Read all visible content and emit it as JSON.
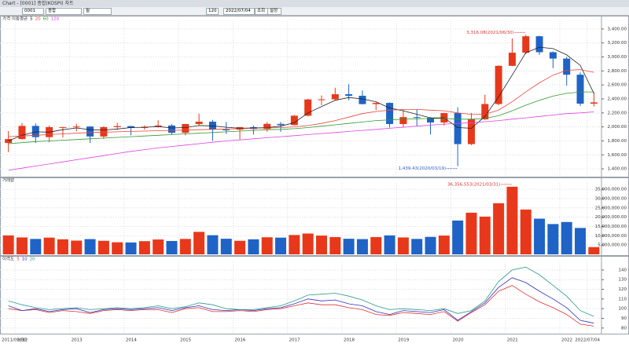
{
  "toolbar": {
    "title": "Chart - [0001] 종합(KOSPI) 차트",
    "code": "0001",
    "name": "종합",
    "period": "월",
    "count": "120",
    "date": "2022/07/04",
    "buttons": [
      "조회",
      "설정"
    ]
  },
  "chart_data": [
    {
      "type": "candlestick",
      "title": "가격 이동평균",
      "categories": [
        "2011/09/30",
        "2012",
        null,
        null,
        null,
        "2013",
        null,
        null,
        null,
        "2014",
        null,
        null,
        null,
        "2015",
        null,
        null,
        null,
        "2016",
        null,
        null,
        null,
        "2017",
        null,
        null,
        null,
        "2018",
        null,
        null,
        null,
        "2019",
        null,
        null,
        null,
        "2020",
        null,
        null,
        null,
        "2021",
        null,
        null,
        null,
        "2022",
        null,
        "2022/07/04"
      ],
      "open": [
        1770,
        1826,
        2014,
        1854,
        1996,
        1997,
        2005,
        1863,
        1997,
        2011,
        1986,
        2002,
        2020,
        1916,
        2041,
        2074,
        1963,
        1961,
        1996,
        1970,
        2043,
        2026,
        2160,
        2392,
        2394,
        2467,
        2445,
        2326,
        2343,
        2041,
        2140,
        2130,
        2063,
        2197,
        1754,
        2108,
        2327,
        2873,
        3061,
        3296,
        3068,
        2977,
        2746,
        2332
      ],
      "high": [
        1940,
        2057,
        2050,
        2020,
        2000,
        2045,
        2010,
        2010,
        2060,
        2015,
        2020,
        2095,
        2040,
        2045,
        2190,
        2100,
        2070,
        2000,
        2020,
        2070,
        2070,
        2170,
        2400,
        2450,
        2560,
        2610,
        2520,
        2350,
        2350,
        2240,
        2250,
        2140,
        2200,
        2280,
        2200,
        2460,
        2880,
        3266,
        3316.08,
        3305,
        3080,
        3000,
        2780,
        2500
      ],
      "low": [
        1640,
        1820,
        1770,
        1780,
        1850,
        1940,
        1770,
        1830,
        1960,
        1880,
        1960,
        1990,
        1890,
        1880,
        2020,
        1800,
        1900,
        1820,
        1890,
        1930,
        1930,
        2020,
        2150,
        2310,
        2380,
        2380,
        2320,
        2240,
        1990,
        1990,
        2010,
        1890,
        2020,
        1439.43,
        1740,
        2100,
        2310,
        2870,
        3040,
        3030,
        2840,
        2590,
        2300,
        2290
      ],
      "close": [
        1826,
        2014,
        1854,
        1996,
        1997,
        2005,
        1863,
        1997,
        2011,
        1986,
        2002,
        2020,
        1916,
        2041,
        2074,
        1963,
        1961,
        1996,
        1970,
        2043,
        2026,
        2160,
        2392,
        2394,
        2467,
        2445,
        2326,
        2343,
        2041,
        2140,
        2130,
        2063,
        2197,
        1754,
        2108,
        2327,
        2873,
        3061,
        3296,
        3068,
        2977,
        2746,
        2332,
        2350
      ],
      "up_color": "#e8381b",
      "down_color": "#1f63c6",
      "series": [
        {
          "name": "5",
          "color": "#222222",
          "values": [
            1800,
            1880,
            1930,
            1925,
            1960,
            1985,
            1960,
            1955,
            1970,
            1990,
            1995,
            2005,
            1985,
            1990,
            2020,
            2015,
            1995,
            1980,
            1985,
            1990,
            2010,
            2060,
            2200,
            2290,
            2380,
            2420,
            2400,
            2360,
            2270,
            2230,
            2180,
            2130,
            2130,
            1990,
            1980,
            2150,
            2430,
            2740,
            3060,
            3140,
            3120,
            3030,
            2880,
            2480
          ]
        },
        {
          "name": "20",
          "color": "#e8453c",
          "values": [
            1860,
            1870,
            1880,
            1890,
            1900,
            1910,
            1920,
            1925,
            1930,
            1935,
            1940,
            1945,
            1950,
            1955,
            1960,
            1965,
            1970,
            1975,
            1980,
            1985,
            1990,
            2000,
            2020,
            2050,
            2090,
            2140,
            2190,
            2220,
            2240,
            2250,
            2250,
            2240,
            2230,
            2200,
            2180,
            2180,
            2240,
            2360,
            2500,
            2630,
            2740,
            2810,
            2820,
            2780
          ]
        },
        {
          "name": "60",
          "color": "#2e9a2e",
          "values": [
            1760,
            1775,
            1790,
            1800,
            1810,
            1820,
            1830,
            1840,
            1850,
            1860,
            1870,
            1880,
            1890,
            1900,
            1910,
            1920,
            1930,
            1940,
            1950,
            1960,
            1965,
            1975,
            1990,
            2010,
            2030,
            2050,
            2070,
            2090,
            2100,
            2110,
            2115,
            2120,
            2120,
            2110,
            2110,
            2120,
            2160,
            2230,
            2310,
            2380,
            2440,
            2480,
            2500,
            2500
          ]
        },
        {
          "name": "120",
          "color": "#e040e0",
          "values": [
            1380,
            1410,
            1440,
            1470,
            1500,
            1530,
            1560,
            1590,
            1620,
            1650,
            1675,
            1700,
            1720,
            1740,
            1760,
            1780,
            1800,
            1815,
            1830,
            1845,
            1860,
            1875,
            1890,
            1905,
            1920,
            1935,
            1950,
            1965,
            1980,
            1995,
            2010,
            2025,
            2040,
            2050,
            2060,
            2075,
            2090,
            2110,
            2130,
            2150,
            2170,
            2190,
            2200,
            2215
          ]
        }
      ],
      "ylim": [
        1300,
        3500
      ],
      "yticks": [
        {
          "value": 1400,
          "label": "1,400.00"
        },
        {
          "value": 1600,
          "label": "1,600.00"
        },
        {
          "value": 1800,
          "label": "1,800.00"
        },
        {
          "value": 2000,
          "label": "2,000.00"
        },
        {
          "value": 2200,
          "label": "2,200.00"
        },
        {
          "value": 2400,
          "label": "2,400.00"
        },
        {
          "value": 2600,
          "label": "2,600.00"
        },
        {
          "value": 2800,
          "label": "2,800.00"
        },
        {
          "value": 3000,
          "label": "3,000.00"
        },
        {
          "value": 3200,
          "label": "3,200.00"
        },
        {
          "value": 3400,
          "label": "3,400.00"
        }
      ],
      "grid": true,
      "annotations": {
        "high": "3,316.08(2021/06/30)",
        "low": "1,439.43(2020/03/19)"
      }
    },
    {
      "type": "bar",
      "title": "거래량",
      "values": [
        10200000,
        9100000,
        8300000,
        9000000,
        8100000,
        7400000,
        8200000,
        7300000,
        6500000,
        6400000,
        7100000,
        8000000,
        7200000,
        8300000,
        12100000,
        10300000,
        8400000,
        7300000,
        8100000,
        9200000,
        9000000,
        10400000,
        11200000,
        10100000,
        9300000,
        8400000,
        8200000,
        9300000,
        10200000,
        9100000,
        8300000,
        9400000,
        10100000,
        18200000,
        22400000,
        20300000,
        27500000,
        36356553,
        24100000,
        19200000,
        16300000,
        17400000,
        14200000,
        3900000
      ],
      "ylim": [
        0,
        38000000
      ],
      "yticks": [
        {
          "value": 5000000,
          "label": "5,000,000.00"
        },
        {
          "value": 10000000,
          "label": "10,000,000.00"
        },
        {
          "value": 15000000,
          "label": "15,000,000.00"
        },
        {
          "value": 20000000,
          "label": "20,000,000.00"
        },
        {
          "value": 25000000,
          "label": "25,000,000.00"
        },
        {
          "value": 30000000,
          "label": "30,000,000.00"
        },
        {
          "value": 35000000,
          "label": "35,000,000.00"
        }
      ],
      "grid": true,
      "annotation": "36,356,553(2021/03/31)"
    },
    {
      "type": "line",
      "title": "이격도",
      "series": [
        {
          "name": "5",
          "color": "#e03030",
          "values": [
            100,
            98,
            99,
            96,
            98,
            97,
            95,
            98,
            99,
            98,
            99,
            99,
            96,
            100,
            101,
            97,
            97,
            98,
            97,
            99,
            100,
            103,
            106,
            104,
            104,
            101,
            99,
            94,
            93,
            96,
            95,
            94,
            97,
            87,
            96,
            104,
            118,
            124,
            115,
            107,
            101,
            94,
            84,
            82
          ]
        },
        {
          "name": "10",
          "color": "#3030c0",
          "values": [
            103,
            98,
            100,
            97,
            99,
            100,
            96,
            99,
            100,
            99,
            100,
            101,
            98,
            101,
            103,
            99,
            98,
            99,
            98,
            100,
            101,
            105,
            110,
            108,
            109,
            105,
            103,
            97,
            94,
            98,
            97,
            96,
            99,
            88,
            97,
            106,
            122,
            132,
            127,
            118,
            110,
            101,
            88,
            85
          ]
        },
        {
          "name": "20",
          "color": "#2a9a8a",
          "values": [
            108,
            104,
            101,
            99,
            100,
            101,
            99,
            100,
            101,
            100,
            101,
            103,
            100,
            102,
            106,
            104,
            100,
            99,
            99,
            101,
            103,
            108,
            114,
            115,
            116,
            113,
            109,
            103,
            99,
            100,
            99,
            98,
            100,
            95,
            98,
            108,
            128,
            140,
            143,
            135,
            124,
            113,
            98,
            92
          ]
        }
      ],
      "ylim": [
        75,
        148
      ],
      "yticks": [
        80,
        90,
        100,
        110,
        120,
        130,
        140
      ],
      "grid": true
    }
  ]
}
